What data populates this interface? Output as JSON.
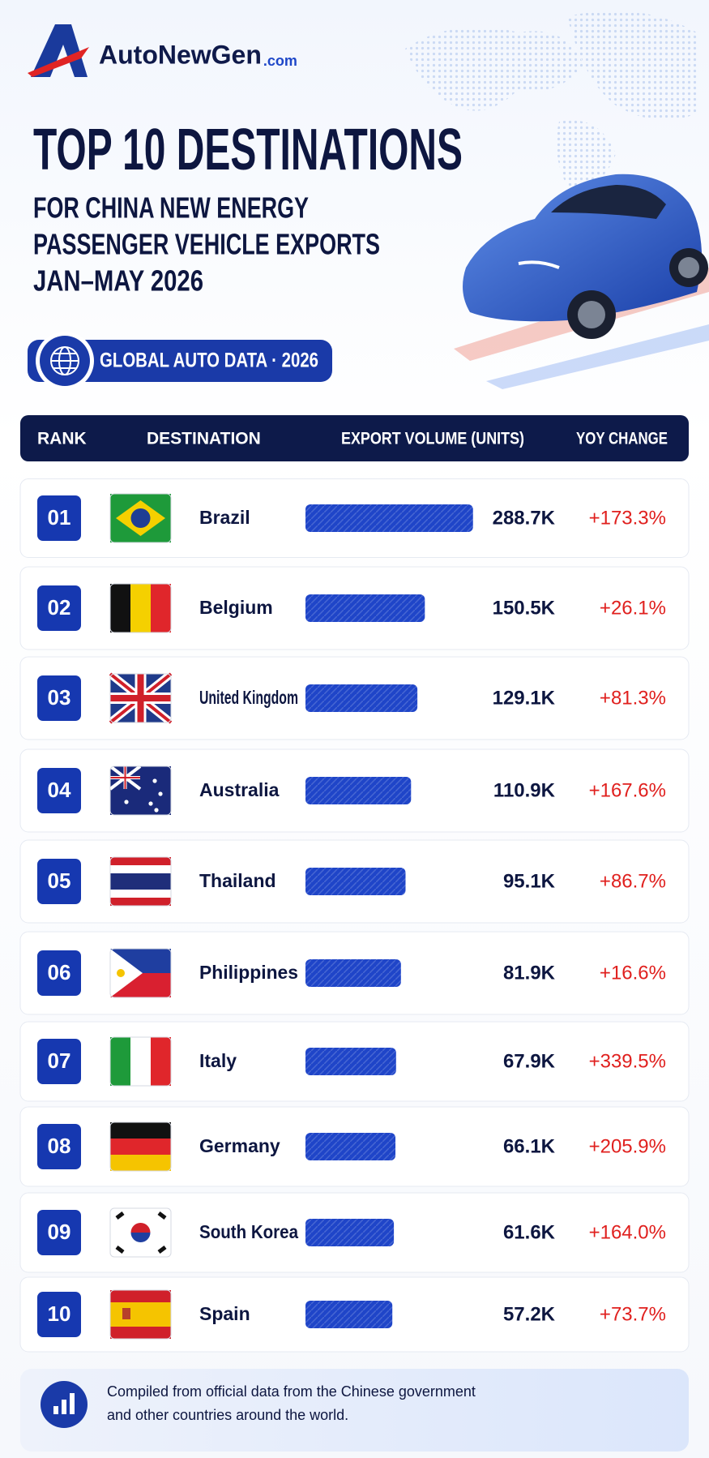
{
  "header": {
    "logo": "AutoNewGen",
    "logo_suffix": ".com",
    "title": "TOP 10 DESTINATIONS",
    "subtitle_lines": [
      "FOR CHINA NEW ENERGY",
      "PASSENGER VEHICLE EXPORTS",
      "JAN–MAY 2026"
    ],
    "badge": "GLOBAL AUTO DATA · 2026"
  },
  "chart_data": {
    "type": "bar",
    "columns": [
      "RANK",
      "DESTINATION",
      "EXPORT VOLUME (UNITS)",
      "YOY CHANGE"
    ],
    "ranks": [
      "01",
      "02",
      "03",
      "04",
      "05",
      "06",
      "07",
      "08",
      "09",
      "10"
    ],
    "categories": [
      "Brazil",
      "Belgium",
      "United Kingdom",
      "Australia",
      "Thailand",
      "Philippines",
      "Italy",
      "Germany",
      "South Korea",
      "Spain"
    ],
    "values": [
      288.7,
      150.5,
      129.1,
      110.9,
      95.1,
      81.9,
      67.9,
      66.1,
      61.6,
      57.2
    ],
    "value_labels": [
      "288.7K",
      "150.5K",
      "129.1K",
      "110.9K",
      "95.1K",
      "81.9K",
      "67.9K",
      "66.1K",
      "61.6K",
      "57.2K"
    ],
    "yoy_change": [
      "+173.3%",
      "+26.1%",
      "+81.3%",
      "+167.6%",
      "+86.7%",
      "+16.6%",
      "+339.5%",
      "+205.9%",
      "+164.0%",
      "+73.7%"
    ],
    "color": "#1f45c8"
  },
  "footer": {
    "text_lines": [
      "Compiled from official data from the Chinese government",
      "and other countries around the world."
    ]
  }
}
